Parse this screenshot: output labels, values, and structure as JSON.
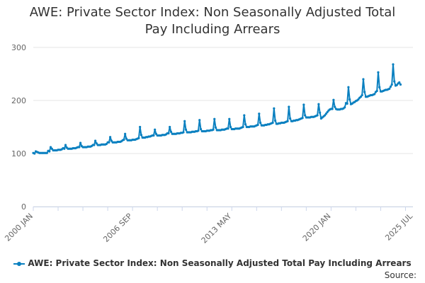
{
  "colors": {
    "series": "#0a80c0",
    "grid": "#e6e6e6",
    "axis": "#ccd6eb",
    "text": "#333333",
    "tick": "#666666"
  },
  "legend": {
    "label": "AWE: Private Sector Index: Non Seasonally Adjusted Total Pay Including Arrears"
  },
  "source": {
    "label": "Source:"
  },
  "chart_data": {
    "type": "line",
    "title": "AWE: Private Sector Index: Non Seasonally Adjusted Total Pay Including Arrears",
    "xlabel": "",
    "ylabel": "",
    "ylim": [
      0,
      300
    ],
    "yticks": [
      0,
      100,
      200,
      300
    ],
    "x_tick_labels": [
      {
        "label": "2000 JAN",
        "month_index": 0
      },
      {
        "label": "2006 SEP",
        "month_index": 80
      },
      {
        "label": "2013 MAY",
        "month_index": 160
      },
      {
        "label": "2020 JAN",
        "month_index": 240
      },
      {
        "label": "2025 JUL",
        "month_index": 306
      }
    ],
    "grid": true,
    "legend_position": "bottom",
    "series": [
      {
        "name": "AWE: Private Sector Index: Non Seasonally Adjusted Total Pay Including Arrears",
        "start": "2000 JAN",
        "frequency": "monthly",
        "values": [
          101,
          100,
          104,
          103,
          102,
          101,
          101,
          101,
          101,
          101,
          101,
          101,
          105,
          104,
          112,
          109,
          106,
          106,
          106,
          106,
          107,
          107,
          107,
          108,
          110,
          109,
          116,
          111,
          109,
          109,
          109,
          109,
          110,
          110,
          110,
          111,
          112,
          112,
          120,
          114,
          112,
          112,
          112,
          112,
          113,
          113,
          113,
          114,
          116,
          116,
          124,
          119,
          116,
          116,
          116,
          117,
          117,
          117,
          117,
          118,
          121,
          121,
          131,
          124,
          121,
          121,
          121,
          121,
          122,
          122,
          122,
          123,
          125,
          126,
          137,
          128,
          125,
          125,
          125,
          125,
          126,
          126,
          126,
          127,
          128,
          129,
          150,
          135,
          130,
          130,
          130,
          131,
          131,
          132,
          132,
          133,
          134,
          134,
          145,
          137,
          134,
          134,
          134,
          134,
          135,
          135,
          135,
          136,
          138,
          138,
          150,
          141,
          137,
          137,
          137,
          137,
          138,
          138,
          138,
          139,
          139,
          140,
          161,
          145,
          140,
          140,
          140,
          140,
          141,
          141,
          141,
          142,
          142,
          143,
          163,
          146,
          142,
          142,
          142,
          142,
          143,
          143,
          143,
          144,
          144,
          145,
          165,
          149,
          144,
          144,
          144,
          144,
          145,
          145,
          145,
          146,
          147,
          147,
          165,
          150,
          146,
          146,
          146,
          147,
          147,
          147,
          147,
          148,
          149,
          150,
          172,
          155,
          150,
          150,
          150,
          151,
          151,
          151,
          151,
          152,
          153,
          154,
          175,
          158,
          153,
          153,
          153,
          154,
          154,
          155,
          155,
          156,
          157,
          158,
          185,
          162,
          156,
          156,
          157,
          157,
          158,
          158,
          158,
          159,
          160,
          161,
          188,
          166,
          161,
          161,
          162,
          162,
          163,
          163,
          164,
          165,
          166,
          167,
          192,
          172,
          168,
          168,
          168,
          168,
          169,
          169,
          169,
          170,
          171,
          172,
          193,
          177,
          166,
          168,
          170,
          172,
          175,
          178,
          181,
          183,
          184,
          184,
          201,
          188,
          184,
          183,
          183,
          183,
          184,
          184,
          185,
          187,
          195,
          194,
          225,
          202,
          193,
          194,
          196,
          197,
          199,
          200,
          202,
          205,
          207,
          210,
          240,
          216,
          207,
          207,
          208,
          209,
          210,
          210,
          211,
          212,
          216,
          218,
          253,
          225,
          217,
          217,
          218,
          219,
          220,
          220,
          221,
          222,
          226,
          230,
          268,
          236,
          228,
          229,
          232,
          234,
          230
        ]
      }
    ]
  }
}
